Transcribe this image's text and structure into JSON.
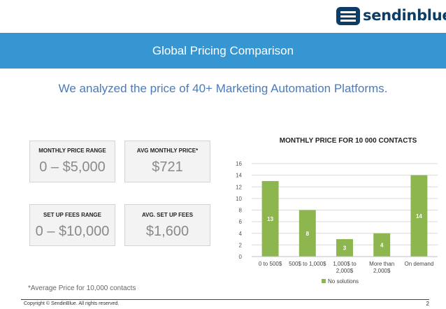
{
  "brand": {
    "name": "sendinblue"
  },
  "banner": {
    "title": "Global Pricing Comparison"
  },
  "subtitle": "We analyzed the price of 40+ Marketing Automation Platforms.",
  "stats": [
    {
      "label": "MONTHLY PRICE RANGE",
      "value": "0 – $5,000"
    },
    {
      "label": "AVG MONTHLY PRICE*",
      "value": "$721"
    },
    {
      "label": "SET UP FEES RANGE",
      "value": "0 – $10,000"
    },
    {
      "label": "AVG. SET UP FEES",
      "value": "$1,600"
    }
  ],
  "footnote": "*Average Price for 10,000 contacts",
  "footer": {
    "copyright": "Copyright © SendinBlue. All rights reserved.",
    "page": "2"
  },
  "colors": {
    "banner": "#3596d2",
    "bar": "#8db64f",
    "logo": "#0b3d67"
  },
  "chart_data": {
    "type": "bar",
    "title": "MONTHLY PRICE FOR 10 000 CONTACTS",
    "categories": [
      [
        "0 to 500$"
      ],
      [
        "500$ to 1,000$"
      ],
      [
        "1,000$ to",
        "2,000$"
      ],
      [
        "More than",
        "2,000$"
      ],
      [
        "On demand"
      ]
    ],
    "series": [
      {
        "name": "No solutions",
        "values": [
          13,
          8,
          3,
          4,
          14
        ]
      }
    ],
    "ylim": [
      0,
      16
    ],
    "yticks": [
      0,
      2,
      4,
      6,
      8,
      10,
      12,
      14,
      16
    ],
    "grid": true,
    "legend": "bottom"
  }
}
